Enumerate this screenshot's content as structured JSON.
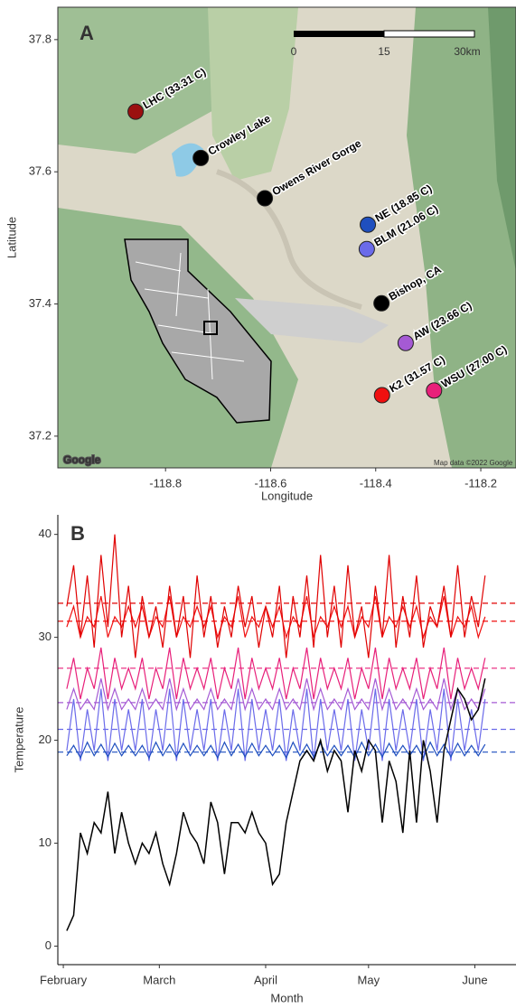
{
  "chart_data": [
    {
      "type": "scatter",
      "panel": "A",
      "xlabel": "Longitude",
      "ylabel": "Latitude",
      "xlim": [
        -119.005,
        -118.133
      ],
      "ylim": [
        37.152,
        37.849
      ],
      "xticks": [
        -118.8,
        -118.6,
        -118.4,
        -118.2
      ],
      "yticks": [
        37.2,
        37.4,
        37.6,
        37.8
      ],
      "labels": [
        "LHC (33.31 C)",
        "Crowley Lake",
        "Owens River Gorge",
        "NE (18.85 C)",
        "BLM (21.06 C)",
        "Bishop, CA",
        "AW (23.66 C)",
        "K2 (31.57 C)",
        "WSU (27.00 C)"
      ],
      "x": [
        -118.857,
        -118.733,
        -118.611,
        -118.415,
        -118.417,
        -118.389,
        -118.343,
        -118.388,
        -118.289
      ],
      "values": [
        37.691,
        37.621,
        37.56,
        37.52,
        37.483,
        37.401,
        37.341,
        37.262,
        37.269
      ],
      "colors": [
        "#9b1010",
        "#000000",
        "#000000",
        "#1f4fbf",
        "#6b6bea",
        "#000000",
        "#a55ad4",
        "#f01010",
        "#e8207a"
      ],
      "scalebar": [
        "0",
        "15",
        "30km"
      ],
      "attribution": [
        "Google",
        "Map data ©2022 Google"
      ]
    },
    {
      "type": "line",
      "panel": "B",
      "xlabel": "Month",
      "ylabel": "Temperature",
      "xlim": [
        30.4,
        164
      ],
      "ylim": [
        -1.8,
        41.9
      ],
      "xticks": [
        {
          "value": 32,
          "label": "February"
        },
        {
          "value": 60,
          "label": "March"
        },
        {
          "value": 91,
          "label": "April"
        },
        {
          "value": 121,
          "label": "May"
        },
        {
          "value": 152,
          "label": "June"
        }
      ],
      "yticks": [
        0,
        10,
        20,
        30,
        40
      ],
      "x": [
        33,
        35,
        37,
        39,
        41,
        43,
        45,
        47,
        49,
        51,
        53,
        55,
        57,
        59,
        61,
        63,
        65,
        67,
        69,
        71,
        73,
        75,
        77,
        79,
        81,
        83,
        85,
        87,
        89,
        91,
        93,
        95,
        97,
        99,
        101,
        103,
        105,
        107,
        109,
        111,
        113,
        115,
        117,
        119,
        121,
        123,
        125,
        127,
        129,
        131,
        133,
        135,
        137,
        139,
        141,
        143,
        145,
        147,
        149,
        151,
        153,
        155
      ],
      "series": [
        {
          "color": "#6b6bea",
          "values": [
            19,
            24,
            18,
            23,
            19,
            25,
            18,
            24,
            19,
            23,
            19,
            24,
            18,
            23,
            19,
            25,
            18,
            24,
            19,
            23,
            19,
            24,
            18,
            23,
            19,
            25,
            18,
            24,
            19,
            23,
            19,
            24,
            18,
            23,
            19,
            25,
            18,
            24,
            19,
            23,
            19,
            24,
            18,
            23,
            19,
            25,
            18,
            24,
            19,
            23,
            19,
            24,
            18,
            23,
            19,
            25,
            18,
            24,
            19,
            23,
            19,
            24
          ]
        },
        {
          "color": "#1f4fbf",
          "values": [
            18.5,
            19.5,
            18.3,
            19.8,
            18.5,
            19.6,
            18.4,
            19.7,
            18.5,
            19.5,
            18.5,
            19.5,
            18.3,
            19.8,
            18.5,
            19.6,
            18.4,
            19.7,
            18.5,
            19.5,
            18.5,
            19.5,
            18.3,
            19.8,
            18.5,
            19.6,
            18.4,
            19.7,
            18.5,
            19.5,
            18.5,
            19.5,
            18.3,
            19.8,
            18.5,
            19.6,
            18.4,
            19.7,
            18.5,
            19.5,
            18.5,
            19.5,
            18.3,
            19.8,
            18.5,
            19.6,
            18.4,
            19.7,
            18.5,
            19.5,
            18.5,
            19.5,
            18.3,
            19.8,
            18.5,
            19.6,
            18.4,
            19.7,
            18.5,
            19.5,
            18.5,
            19.6
          ]
        },
        {
          "color": "#a55ad4",
          "values": [
            23,
            25,
            23,
            24,
            23,
            26,
            23,
            25,
            23,
            24,
            23,
            25,
            23,
            24,
            23,
            26,
            23,
            25,
            23,
            24,
            23,
            25,
            23,
            24,
            23,
            26,
            23,
            25,
            23,
            24,
            23,
            25,
            23,
            24,
            23,
            26,
            23,
            25,
            23,
            24,
            23,
            25,
            23,
            24,
            23,
            26,
            23,
            25,
            23,
            24,
            23,
            25,
            23,
            24,
            23,
            26,
            23,
            25,
            23,
            24,
            23,
            25
          ]
        },
        {
          "color": "#e8207a",
          "values": [
            25,
            28,
            24,
            27,
            25,
            29,
            24,
            28,
            25,
            27,
            25,
            28,
            24,
            27,
            25,
            29,
            24,
            28,
            25,
            27,
            25,
            28,
            24,
            27,
            25,
            29,
            24,
            28,
            25,
            27,
            25,
            28,
            24,
            27,
            25,
            29,
            24,
            28,
            25,
            27,
            25,
            28,
            24,
            27,
            25,
            29,
            24,
            28,
            25,
            27,
            25,
            28,
            24,
            27,
            25,
            29,
            24,
            28,
            25,
            27,
            25,
            28
          ]
        },
        {
          "color": "#f01010",
          "values": [
            31,
            33,
            30,
            32,
            31,
            34,
            30,
            32,
            31,
            33,
            31,
            33,
            30,
            32,
            31,
            34,
            30,
            32,
            31,
            33,
            31,
            33,
            30,
            32,
            31,
            34,
            30,
            32,
            31,
            33,
            31,
            33,
            30,
            32,
            31,
            34,
            30,
            32,
            31,
            33,
            31,
            33,
            30,
            32,
            31,
            34,
            30,
            32,
            31,
            33,
            31,
            33,
            30,
            32,
            31,
            34,
            30,
            32,
            31,
            33,
            30,
            32
          ]
        },
        {
          "color": "#e00000",
          "values": [
            33,
            37,
            30,
            36,
            29,
            38,
            31,
            40,
            30,
            35,
            28,
            34,
            30,
            33,
            29,
            35,
            30,
            34,
            28,
            36,
            30,
            34,
            29,
            33,
            30,
            35,
            31,
            34,
            29,
            33,
            30,
            35,
            28,
            34,
            30,
            36,
            29,
            38,
            30,
            35,
            29,
            37,
            30,
            33,
            28,
            35,
            30,
            38,
            29,
            34,
            30,
            36,
            29,
            33,
            31,
            35,
            30,
            37,
            30,
            34,
            31,
            36
          ]
        },
        {
          "color": "#000000",
          "values": [
            1.5,
            3,
            11,
            9,
            12,
            11,
            15,
            9,
            13,
            10,
            8,
            10,
            9,
            11,
            8,
            6,
            9,
            13,
            11,
            10,
            8,
            14,
            12,
            7,
            12,
            12,
            11,
            13,
            11,
            10,
            6,
            7,
            12,
            15,
            18,
            19,
            18,
            20,
            17,
            19,
            18,
            13,
            19,
            17,
            20,
            19,
            12,
            18,
            16,
            11,
            19,
            12,
            20,
            17,
            12,
            19,
            22,
            25,
            24,
            22,
            23,
            26
          ]
        }
      ],
      "hlines": [
        {
          "value": 33.31,
          "color": "#e00000"
        },
        {
          "value": 31.57,
          "color": "#f01010"
        },
        {
          "value": 27.0,
          "color": "#e8207a"
        },
        {
          "value": 23.66,
          "color": "#a55ad4"
        },
        {
          "value": 21.06,
          "color": "#6b6bea"
        },
        {
          "value": 18.85,
          "color": "#1f4fbf"
        }
      ]
    }
  ]
}
